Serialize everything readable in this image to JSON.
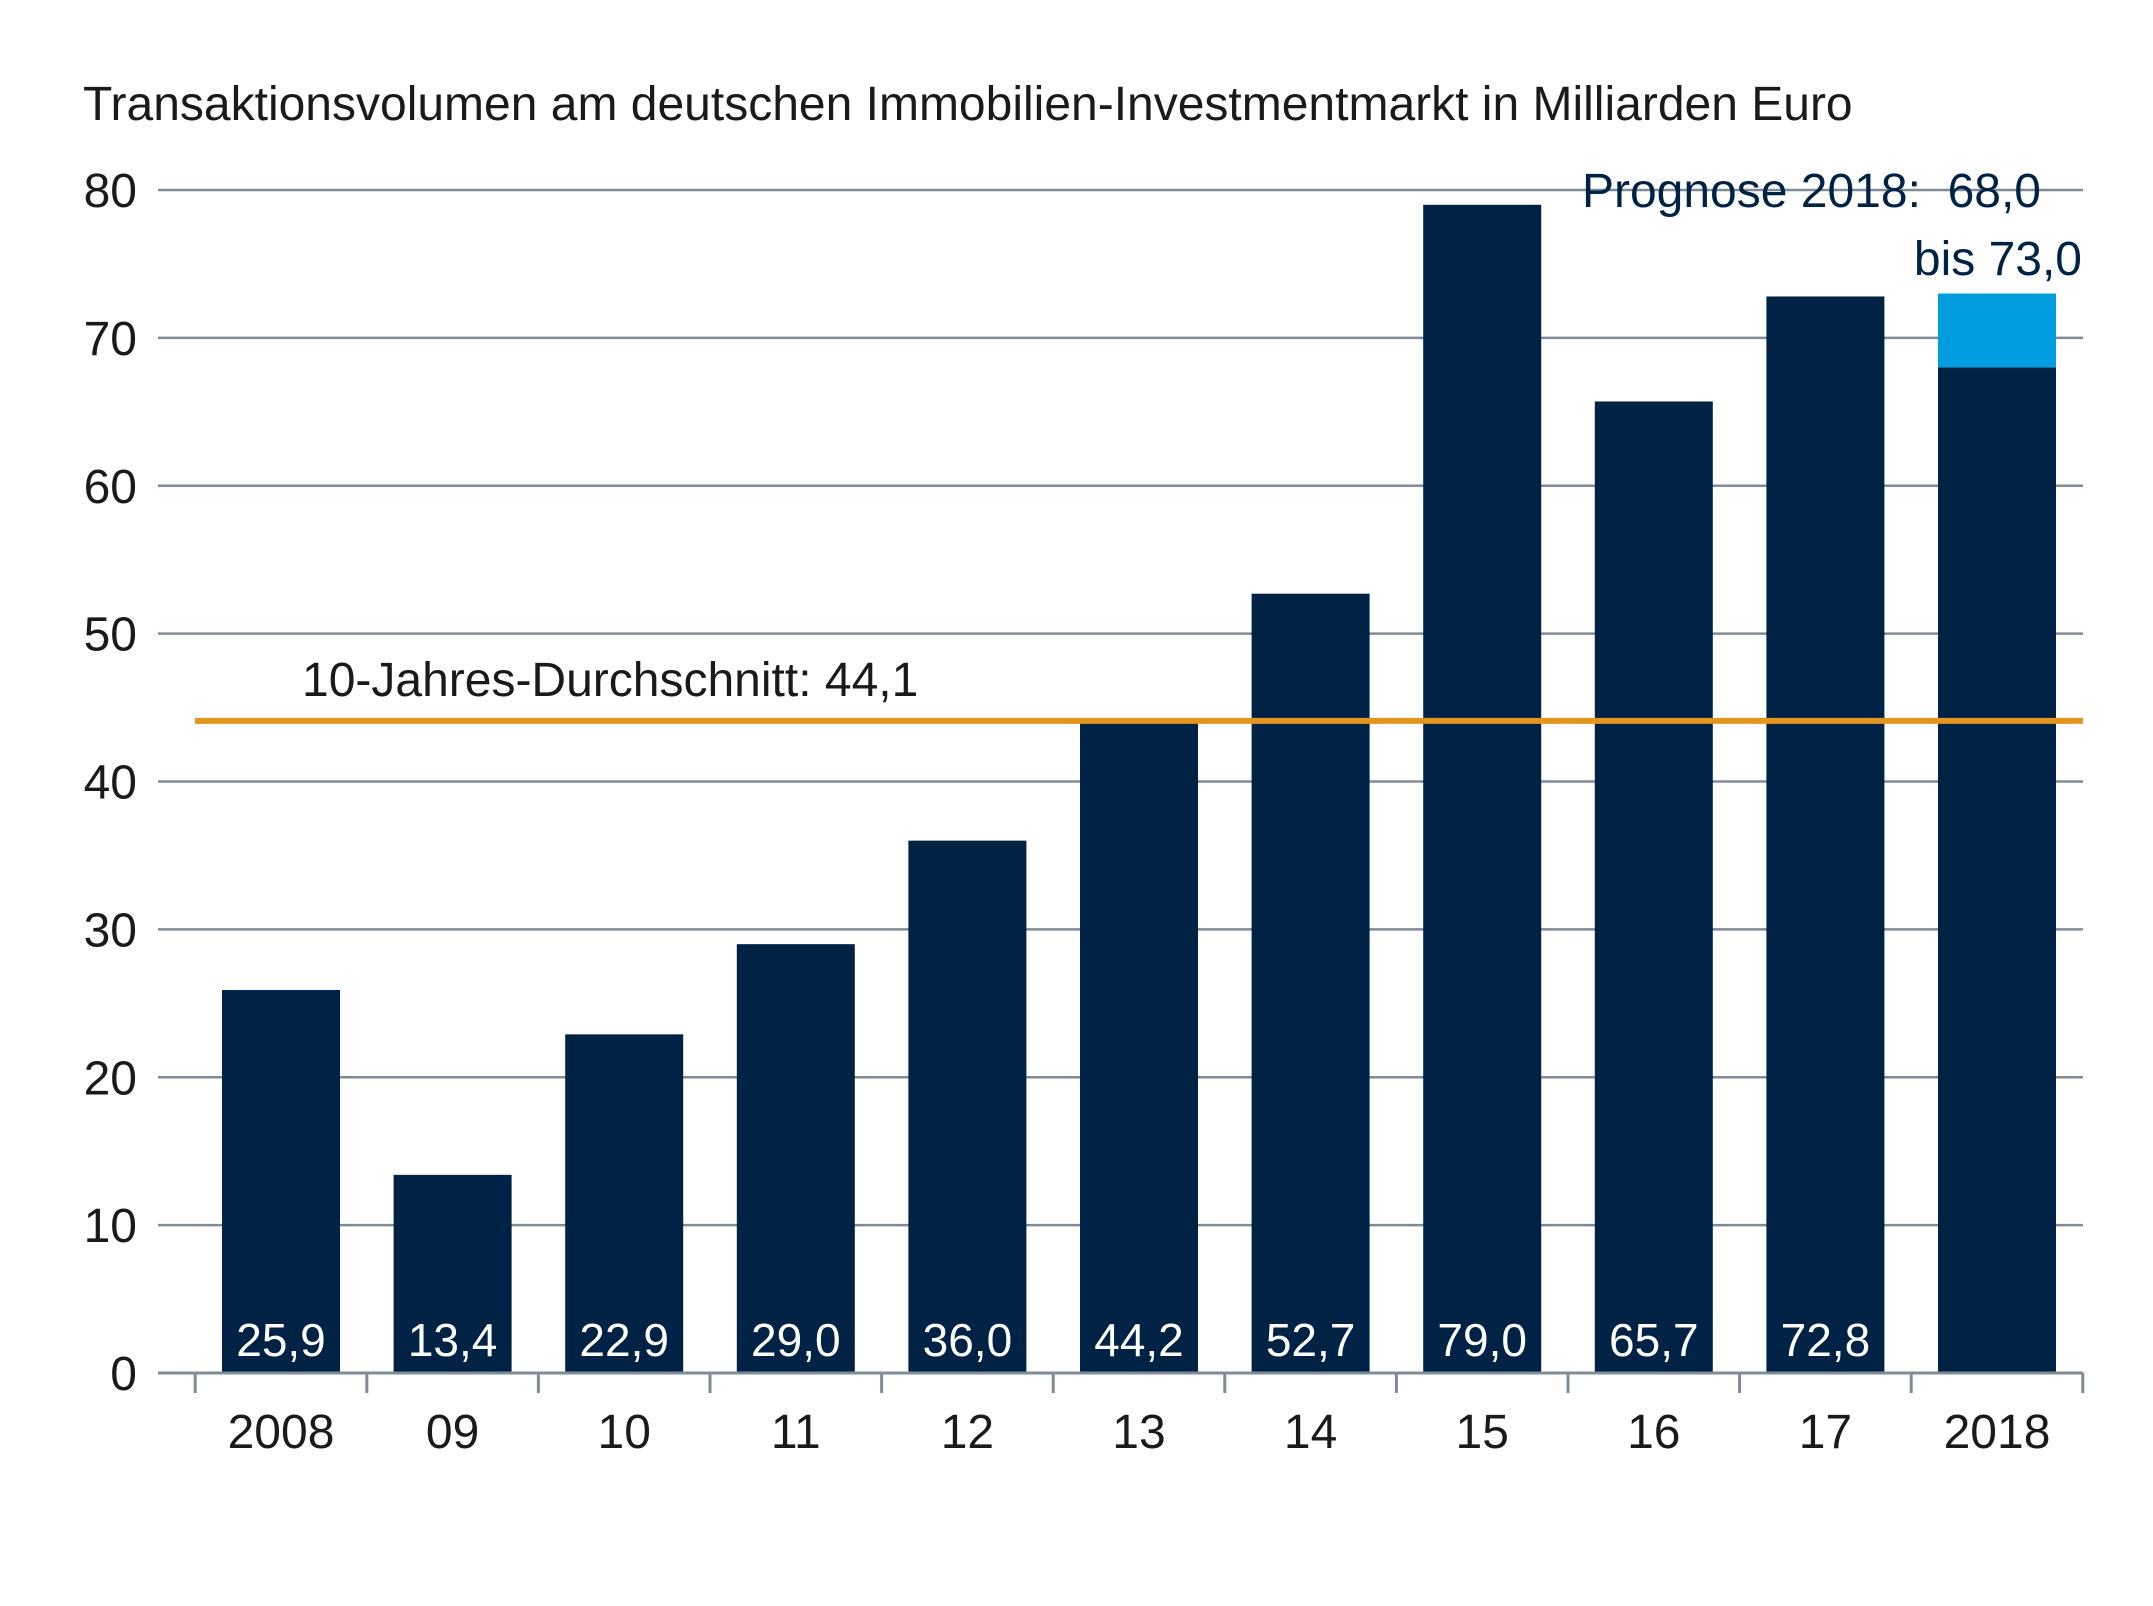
{
  "chart_data": {
    "type": "bar",
    "title": "Transaktionsvolumen am deutschen Immobilien-Investmentmarkt in Milliarden Euro",
    "categories": [
      "2008",
      "09",
      "10",
      "11",
      "12",
      "13",
      "14",
      "15",
      "16",
      "17",
      "2018"
    ],
    "values": [
      25.9,
      13.4,
      22.9,
      29.0,
      36.0,
      44.2,
      52.7,
      79.0,
      65.7,
      72.8,
      68.0
    ],
    "value_labels": [
      "25,9",
      "13,4",
      "22,9",
      "29,0",
      "36,0",
      "44,2",
      "52,7",
      "79,0",
      "65,7",
      "72,8",
      ""
    ],
    "forecast": {
      "category": "2018",
      "low": 68.0,
      "high": 73.0,
      "label_line1": "Prognose 2018:  68,0",
      "label_line2": "bis 73,0"
    },
    "reference_line": {
      "value": 44.1,
      "label": "10-Jahres-Durchschnitt: 44,1"
    },
    "y_ticks": [
      0,
      10,
      20,
      30,
      40,
      50,
      60,
      70,
      80
    ],
    "ylim": [
      0,
      80
    ],
    "grid": true,
    "colors": {
      "bar": "#002244",
      "forecast_range": "#009de0",
      "reference_line": "#e2961e",
      "grid": "#7f8c97",
      "text": "#1a1a1a",
      "annotation_text": "#002244",
      "bar_label": "#ffffff"
    }
  }
}
